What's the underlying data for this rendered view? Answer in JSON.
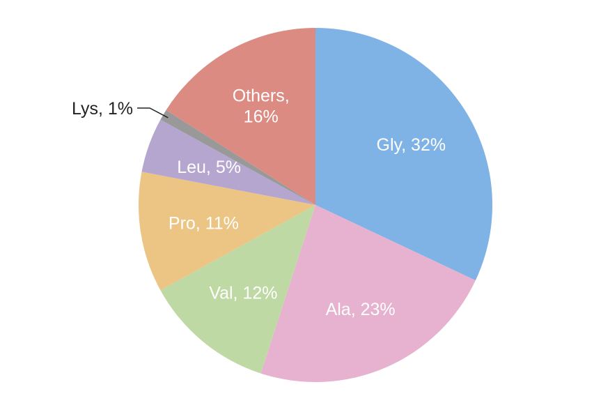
{
  "chart_data": {
    "type": "pie",
    "title": "",
    "start_angle_deg": 90,
    "direction": "clockwise",
    "slices": [
      {
        "name": "Gly",
        "value": 32,
        "label_lines": [
          "Gly, 32%"
        ],
        "color": "#7FB2E5",
        "label_position": "inside"
      },
      {
        "name": "Ala",
        "value": 23,
        "label_lines": [
          "Ala, 23%"
        ],
        "color": "#E6B2CF",
        "label_position": "inside"
      },
      {
        "name": "Val",
        "value": 12,
        "label_lines": [
          "Val, 12%"
        ],
        "color": "#BFD9A4",
        "label_position": "inside"
      },
      {
        "name": "Pro",
        "value": 11,
        "label_lines": [
          "Pro, 11%"
        ],
        "color": "#ECC585",
        "label_position": "inside"
      },
      {
        "name": "Leu",
        "value": 5,
        "label_lines": [
          "Leu, 5%"
        ],
        "color": "#B4A6CF",
        "label_position": "inside"
      },
      {
        "name": "Lys",
        "value": 1,
        "label_lines": [
          "Lys, 1%"
        ],
        "color": "#999999",
        "label_position": "outside"
      },
      {
        "name": "Others",
        "value": 16,
        "label_lines": [
          "Others,",
          "16%"
        ],
        "color": "#DB8B82",
        "label_position": "inside"
      }
    ]
  }
}
